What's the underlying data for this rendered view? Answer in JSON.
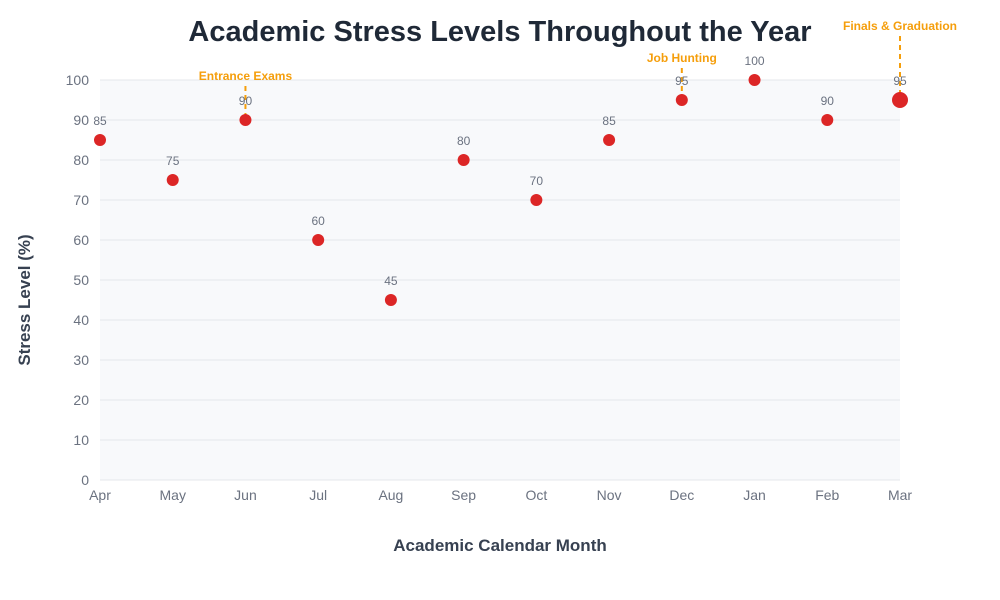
{
  "chart_data": {
    "type": "scatter",
    "title": "Academic Stress Levels Throughout the Year",
    "xlabel": "Academic Calendar Month",
    "ylabel": "Stress Level (%)",
    "categories": [
      "Apr",
      "May",
      "Jun",
      "Jul",
      "Aug",
      "Sep",
      "Oct",
      "Nov",
      "Dec",
      "Jan",
      "Feb",
      "Mar"
    ],
    "values": [
      85,
      75,
      90,
      60,
      45,
      80,
      70,
      85,
      95,
      100,
      90,
      95
    ],
    "highlight_index": 11,
    "ylim": [
      0,
      100
    ],
    "yticks": [
      0,
      10,
      20,
      30,
      40,
      50,
      60,
      70,
      80,
      90,
      100
    ],
    "grid": true,
    "legend": "none",
    "annotations": [
      {
        "category": "Jun",
        "text": "Entrance Exams",
        "level": 1
      },
      {
        "category": "Dec",
        "text": "Job Hunting",
        "level": 2
      },
      {
        "category": "Mar",
        "text": "Finals & Graduation",
        "level": 3
      }
    ],
    "colors": {
      "marker": "#dc2626",
      "annotation": "#f59e0b",
      "plot_bg": "#f8f9fb",
      "grid": "#e5e7eb",
      "title": "#1f2937",
      "tick": "#6b7280"
    }
  }
}
